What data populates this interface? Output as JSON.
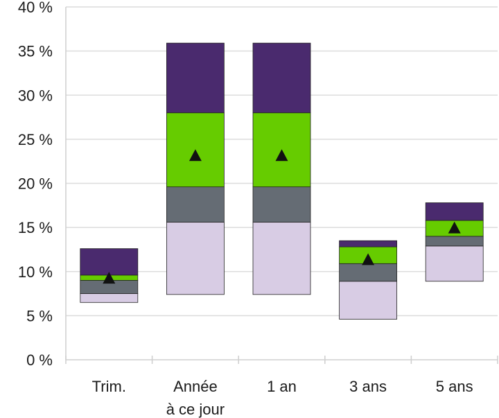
{
  "chart_data": {
    "type": "bar",
    "subtype": "floating-stacked-range",
    "categories": [
      [
        "Trim."
      ],
      [
        "Année",
        "à ce jour"
      ],
      [
        "1 an"
      ],
      [
        "3 ans"
      ],
      [
        "5 ans"
      ]
    ],
    "y_ticks": [
      "0 %",
      "5 %",
      "10 %",
      "15 %",
      "20 %",
      "25 %",
      "30 %",
      "35 %",
      "40 %"
    ],
    "ylim": [
      0,
      40
    ],
    "y_unit": "%",
    "grid": true,
    "legend": "none",
    "bands": [
      {
        "color": "#d8cce4",
        "ranges": [
          [
            6.5,
            7.5
          ],
          [
            7.4,
            15.6
          ],
          [
            7.4,
            15.6
          ],
          [
            4.6,
            8.9
          ],
          [
            8.9,
            12.9
          ]
        ]
      },
      {
        "color": "#656c74",
        "ranges": [
          [
            7.5,
            9.0
          ],
          [
            15.6,
            19.6
          ],
          [
            15.6,
            19.6
          ],
          [
            8.9,
            10.9
          ],
          [
            12.9,
            14.0
          ]
        ]
      },
      {
        "color": "#66cc00",
        "ranges": [
          [
            9.0,
            9.6
          ],
          [
            19.6,
            28.0
          ],
          [
            19.6,
            28.0
          ],
          [
            10.9,
            12.8
          ],
          [
            14.0,
            15.8
          ]
        ]
      },
      {
        "color": "#4a2a6e",
        "ranges": [
          [
            9.6,
            12.6
          ],
          [
            28.0,
            35.9
          ],
          [
            28.0,
            35.9
          ],
          [
            12.8,
            13.5
          ],
          [
            15.8,
            17.8
          ]
        ]
      }
    ],
    "markers": {
      "shape": "triangle",
      "color": "#111111",
      "values": [
        9.3,
        23.2,
        23.2,
        11.4,
        15.0
      ]
    }
  }
}
